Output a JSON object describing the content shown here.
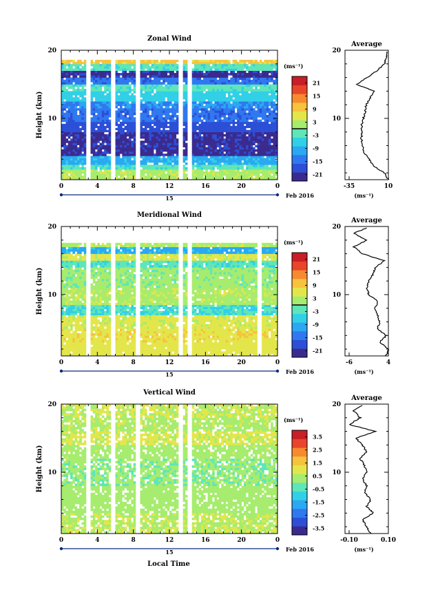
{
  "figure": {
    "date_label": "Feb 2016",
    "day_label": "15",
    "xlabel": "Local Time",
    "ylabel": "Height (km)",
    "avg_title": "Average",
    "cbar_unit": "(ms⁻¹)",
    "avg_unit": "(ms⁻¹)"
  },
  "colormap": [
    "#3b2a8e",
    "#2c4fd6",
    "#2f78f0",
    "#2aa8f2",
    "#31d0e6",
    "#5ee6b8",
    "#a6ec6e",
    "#e3e64a",
    "#f7c23c",
    "#f78a2e",
    "#e8452a",
    "#c81e26"
  ],
  "chart_data": [
    {
      "type": "heatmap",
      "title": "Zonal Wind",
      "xlabel": "Local Time",
      "ylabel": "Height (km)",
      "xticks": [
        "0",
        "4",
        "8",
        "12",
        "16",
        "20",
        "0"
      ],
      "xlim": [
        0,
        24
      ],
      "ylim": [
        1,
        20
      ],
      "yticks": [
        "10",
        "20"
      ],
      "cbar_ticks": [
        "21",
        "15",
        "9",
        "3",
        "-3",
        "-9",
        "-15",
        "-21"
      ],
      "clim": [
        -24,
        24
      ],
      "bands": [
        {
          "h0": 1,
          "h1": 2.5,
          "v": 3
        },
        {
          "h0": 2.5,
          "h1": 3.2,
          "v": -3
        },
        {
          "h0": 3.2,
          "h1": 4.5,
          "v": -9
        },
        {
          "h0": 4.5,
          "h1": 8,
          "v": -21
        },
        {
          "h0": 8,
          "h1": 9.5,
          "v": -18
        },
        {
          "h0": 9.5,
          "h1": 11.5,
          "v": -15
        },
        {
          "h0": 11.5,
          "h1": 12.5,
          "v": -12
        },
        {
          "h0": 12.5,
          "h1": 14,
          "v": -6
        },
        {
          "h0": 14,
          "h1": 15,
          "v": -3
        },
        {
          "h0": 15,
          "h1": 16,
          "v": -15
        },
        {
          "h0": 16,
          "h1": 17,
          "v": -21
        },
        {
          "h0": 17,
          "h1": 18,
          "v": -3
        },
        {
          "h0": 18,
          "h1": 18.6,
          "v": 9
        }
      ],
      "gaps": [
        3,
        5.7,
        8.5,
        13.2,
        14.2
      ],
      "avg": {
        "xlim": [
          -35,
          10
        ],
        "xticks": [
          "-35",
          "10"
        ],
        "yticks": [
          "10",
          "20"
        ],
        "profile": [
          [
            1,
            10
          ],
          [
            2,
            6
          ],
          [
            3,
            -5
          ],
          [
            4,
            -10
          ],
          [
            5,
            -15
          ],
          [
            6,
            -17
          ],
          [
            7,
            -18
          ],
          [
            8,
            -17
          ],
          [
            9,
            -18
          ],
          [
            10,
            -16
          ],
          [
            11,
            -14
          ],
          [
            12,
            -13
          ],
          [
            13,
            -9
          ],
          [
            14,
            -5
          ],
          [
            15,
            -23
          ],
          [
            16,
            -12
          ],
          [
            17,
            -2
          ],
          [
            18,
            6
          ],
          [
            19,
            8
          ],
          [
            19.8,
            9
          ]
        ]
      }
    },
    {
      "type": "heatmap",
      "title": "Meridional Wind",
      "xlabel": "Local Time",
      "ylabel": "Height (km)",
      "xticks": [
        "0",
        "4",
        "8",
        "12",
        "16",
        "20",
        "0"
      ],
      "xlim": [
        0,
        24
      ],
      "ylim": [
        1,
        20
      ],
      "yticks": [
        "10",
        "20"
      ],
      "cbar_ticks": [
        "21",
        "15",
        "9",
        "3",
        "-3",
        "-9",
        "-15",
        "-21"
      ],
      "clim": [
        -24,
        24
      ],
      "bands": [
        {
          "h0": 1,
          "h1": 3,
          "v": 6
        },
        {
          "h0": 3,
          "h1": 5,
          "v": 7
        },
        {
          "h0": 5,
          "h1": 7,
          "v": 5
        },
        {
          "h0": 7,
          "h1": 8.5,
          "v": -4
        },
        {
          "h0": 8.5,
          "h1": 11,
          "v": 3
        },
        {
          "h0": 11,
          "h1": 14,
          "v": 1
        },
        {
          "h0": 14,
          "h1": 15,
          "v": -3
        },
        {
          "h0": 15,
          "h1": 16,
          "v": 5
        },
        {
          "h0": 16,
          "h1": 17,
          "v": -9
        },
        {
          "h0": 17,
          "h1": 17.6,
          "v": 3
        }
      ],
      "gaps": [
        3,
        5.7,
        8.5,
        13.2,
        14.2,
        22
      ],
      "avg": {
        "xlim": [
          -6,
          4
        ],
        "xticks": [
          "-6",
          "4"
        ],
        "yticks": [
          "10",
          "20"
        ],
        "profile": [
          [
            1,
            3.5
          ],
          [
            2,
            4
          ],
          [
            3,
            2
          ],
          [
            4,
            3.5
          ],
          [
            5,
            1.5
          ],
          [
            6,
            2
          ],
          [
            7,
            1.5
          ],
          [
            8,
            1
          ],
          [
            9,
            1.5
          ],
          [
            10,
            -0.5
          ],
          [
            11,
            -1
          ],
          [
            12,
            -0.5
          ],
          [
            13,
            0.5
          ],
          [
            14,
            1
          ],
          [
            15,
            3
          ],
          [
            16,
            -2
          ],
          [
            17,
            -4
          ],
          [
            18,
            -1
          ],
          [
            19,
            -4
          ],
          [
            19.8,
            -1
          ]
        ]
      }
    },
    {
      "type": "heatmap",
      "title": "Vertical Wind",
      "xlabel": "Local Time",
      "ylabel": "Height (km)",
      "xticks": [
        "0",
        "4",
        "8",
        "12",
        "16",
        "20",
        "0"
      ],
      "xlim": [
        0,
        24
      ],
      "ylim": [
        1,
        20
      ],
      "yticks": [
        "10",
        "20"
      ],
      "cbar_ticks": [
        "3.5",
        "2.5",
        "1.5",
        "0.5",
        "-0.5",
        "-1.5",
        "-2.5",
        "-3.5"
      ],
      "clim": [
        -4,
        4
      ],
      "bands": [
        {
          "h0": 1,
          "h1": 4,
          "v": 0.6
        },
        {
          "h0": 4,
          "h1": 8,
          "v": 0.3
        },
        {
          "h0": 8,
          "h1": 12,
          "v": 0.1
        },
        {
          "h0": 12,
          "h1": 14,
          "v": 0.4
        },
        {
          "h0": 14,
          "h1": 16,
          "v": 0.8
        },
        {
          "h0": 16,
          "h1": 18,
          "v": 0.5
        },
        {
          "h0": 18,
          "h1": 20,
          "v": 0.7
        }
      ],
      "gaps": [
        3,
        5.7,
        8.5,
        13.2,
        14.2
      ],
      "avg": {
        "xlim": [
          -0.1,
          0.1
        ],
        "xticks": [
          "-0.10",
          "0.10"
        ],
        "yticks": [
          "10",
          "20"
        ],
        "profile": [
          [
            1,
            0.02
          ],
          [
            2,
            0.0
          ],
          [
            3,
            -0.02
          ],
          [
            4,
            0.03
          ],
          [
            5,
            0.0
          ],
          [
            6,
            0.02
          ],
          [
            7,
            -0.01
          ],
          [
            8,
            0.0
          ],
          [
            9,
            -0.02
          ],
          [
            10,
            0.0
          ],
          [
            11,
            -0.01
          ],
          [
            12,
            -0.03
          ],
          [
            13,
            0.0
          ],
          [
            14,
            -0.02
          ],
          [
            15,
            -0.05
          ],
          [
            16,
            0.04
          ],
          [
            17,
            -0.08
          ],
          [
            18,
            -0.03
          ],
          [
            19,
            -0.06
          ],
          [
            19.8,
            -0.02
          ]
        ]
      }
    }
  ]
}
